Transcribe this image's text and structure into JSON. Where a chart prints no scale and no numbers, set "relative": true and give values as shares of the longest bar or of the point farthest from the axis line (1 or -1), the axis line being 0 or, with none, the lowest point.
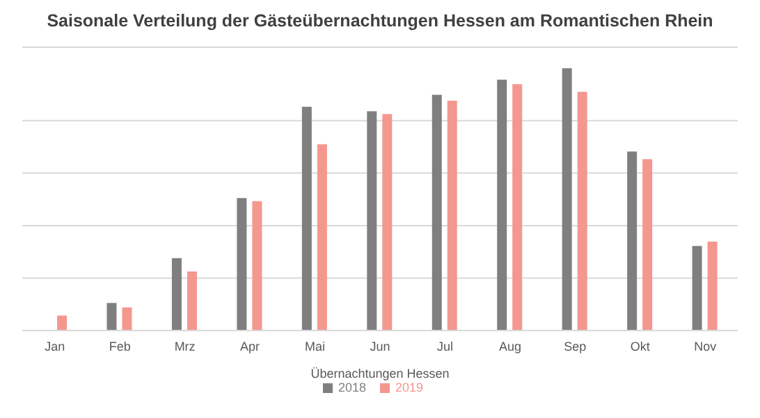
{
  "chart_data": {
    "type": "bar",
    "title": "Saisonale Verteilung der Gästeübernachtungen Hessen am Romantischen Rhein",
    "xlabel": "Übernachtungen Hessen",
    "relative": true,
    "grid": "y",
    "legend": "bottom",
    "categories": [
      "Jan",
      "Feb",
      "Mrz",
      "Apr",
      "Mai",
      "Jun",
      "Jul",
      "Aug",
      "Sep",
      "Okt",
      "Nov"
    ],
    "series": [
      {
        "name": "2018",
        "color": "#7f7f7f",
        "values": [
          null,
          0.105,
          0.276,
          0.505,
          0.853,
          0.836,
          0.899,
          0.956,
          1,
          0.682,
          0.322
        ]
      },
      {
        "name": "2019",
        "color": "#f4978e",
        "values": [
          0.057,
          0.088,
          0.225,
          0.493,
          0.71,
          0.825,
          0.876,
          0.939,
          0.91,
          0.653,
          0.339
        ]
      }
    ]
  }
}
